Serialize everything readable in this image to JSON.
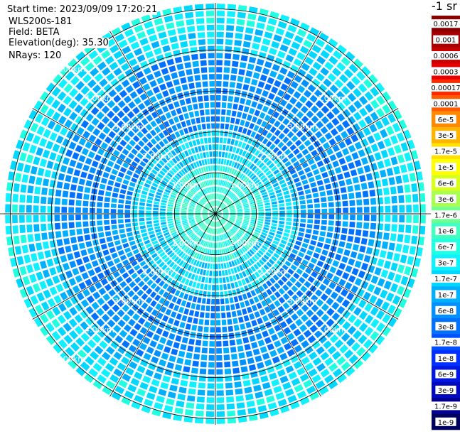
{
  "header": {
    "start_time": "Start time: 2023/09/09 17:20:21",
    "instrument": "WLS200s-181",
    "field": "Field: BETA",
    "elevation": "Elevation(deg): 35.30",
    "nrays": "NRays: 120"
  },
  "colorbar": {
    "units": "-1 sr",
    "entries": [
      {
        "label": "0.0017",
        "color": "#8b0000"
      },
      {
        "label": "0.001",
        "color": "#a80000"
      },
      {
        "label": "0.0006",
        "color": "#c80000"
      },
      {
        "label": "0.0003",
        "color": "#e80000"
      },
      {
        "label": "0.00017",
        "color": "#ff2a00"
      },
      {
        "label": "0.0001",
        "color": "#ff5a00"
      },
      {
        "label": "6e-5",
        "color": "#ff8a00"
      },
      {
        "label": "3e-5",
        "color": "#ffb400"
      },
      {
        "label": "1.7e-5",
        "color": "#ffe000"
      },
      {
        "label": "1e-5",
        "color": "#ffff00"
      },
      {
        "label": "6e-6",
        "color": "#d8ff20"
      },
      {
        "label": "3e-6",
        "color": "#a8ff50"
      },
      {
        "label": "1.7e-6",
        "color": "#70ff90"
      },
      {
        "label": "1e-6",
        "color": "#40ffc0"
      },
      {
        "label": "6e-7",
        "color": "#20ffe0"
      },
      {
        "label": "3e-7",
        "color": "#10f0ff"
      },
      {
        "label": "1.7e-7",
        "color": "#00d8ff"
      },
      {
        "label": "1e-7",
        "color": "#00b0ff"
      },
      {
        "label": "6e-8",
        "color": "#0090ff"
      },
      {
        "label": "3e-8",
        "color": "#0070ff"
      },
      {
        "label": "1.7e-8",
        "color": "#0050ff"
      },
      {
        "label": "1e-8",
        "color": "#0030ff"
      },
      {
        "label": "6e-9",
        "color": "#0018e0"
      },
      {
        "label": "3e-9",
        "color": "#0008c0"
      },
      {
        "label": "1.7e-9",
        "color": "#000090"
      },
      {
        "label": "1e-9",
        "color": "#000060"
      }
    ]
  },
  "chart_data": {
    "type": "heatmap",
    "projection": "polar PPI",
    "field": "BETA",
    "rays": 120,
    "range_unit": "km",
    "range_max_km": 5.15,
    "range_rings_km": [
      1.0,
      2.0,
      3.0,
      4.0,
      5.0
    ],
    "spokes_deg": [
      0,
      30,
      60,
      90,
      120,
      150,
      180,
      210,
      240,
      270,
      300,
      330
    ],
    "ring_labels": [
      {
        "text": "1.00km",
        "ring": 1,
        "az": [
          315,
          45,
          225,
          135
        ]
      },
      {
        "text": "2.00km",
        "ring": 2,
        "az": [
          315,
          45,
          225,
          135
        ]
      },
      {
        "text": "3.00km",
        "ring": 3,
        "az": [
          315,
          45,
          225,
          135
        ]
      },
      {
        "text": "4.00km",
        "ring": 4,
        "az": [
          315,
          45,
          225,
          135
        ]
      },
      {
        "text": "5.00km",
        "ring": 5,
        "az": [
          315,
          225
        ]
      }
    ],
    "radial_profile": [
      {
        "r_km": 0.2,
        "value": "1e-6"
      },
      {
        "r_km": 1.0,
        "value": "6e-7"
      },
      {
        "r_km": 1.5,
        "value": "1.7e-7"
      },
      {
        "r_km": 2.5,
        "value": "6e-8"
      },
      {
        "r_km": 3.5,
        "value": "6e-8"
      },
      {
        "r_km": 4.3,
        "value": "1.7e-7"
      },
      {
        "r_km": 4.8,
        "value": "3e-7"
      }
    ]
  }
}
